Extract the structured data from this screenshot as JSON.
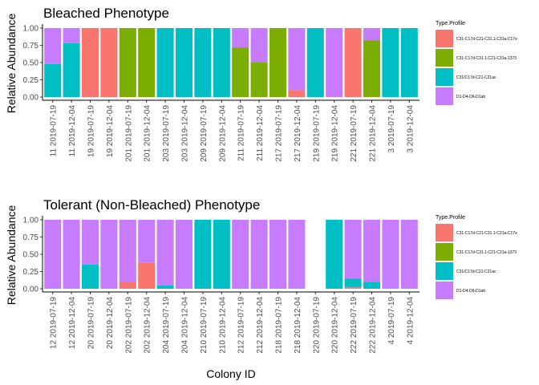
{
  "colors": {
    "C31-C17d-C21-C31.1-C31a-C17e": "#F8766D",
    "C31-C17d-C31.1-C21-C31a-1373": "#7CAE00",
    "C31/C17d-C21-C21ac": "#00BFC4",
    "D1-D4-D6-D1ab": "#C77CFF"
  },
  "chart_data": [
    {
      "type": "bar",
      "stacked": true,
      "title": "Bleached Phenotype",
      "xlabel": "",
      "ylabel": "Relative Abundance",
      "ylim": [
        0,
        1
      ],
      "yticks": [
        "0.00",
        "0.25",
        "0.50",
        "0.75",
        "1.00"
      ],
      "categories": [
        "11 2019-07-19",
        "11 2019-12-04",
        "19 2019-07-19",
        "19 2019-12-04",
        "201 2019-07-19",
        "201 2019-12-04",
        "203 2019-07-19",
        "203 2019-12-04",
        "209 2019-07-19",
        "209 2019-12-04",
        "211 2019-07-19",
        "211 2019-12-04",
        "217 2019-07-19",
        "217 2019-12-04",
        "219 2019-07-19",
        "219 2019-12-04",
        "221 2019-07-19",
        "221 2019-12-04",
        "3 2019-07-19",
        "3 2019-12-04"
      ],
      "legend_title": "Type.Profile",
      "legend_position": "right",
      "series": [
        {
          "name": "C31-C17d-C21-C31.1-C31a-C17e",
          "values": [
            0,
            0,
            1,
            1,
            0,
            0,
            0,
            0,
            0,
            0,
            0,
            0,
            0,
            0.1,
            0,
            0,
            1,
            0,
            0,
            0
          ]
        },
        {
          "name": "C31-C17d-C31.1-C21-C31a-1373",
          "values": [
            0,
            0,
            0,
            0,
            1,
            1,
            0,
            0,
            0,
            0,
            0.72,
            0.5,
            1,
            0,
            0,
            0,
            0,
            0.82,
            0,
            0
          ]
        },
        {
          "name": "C31/C17d-C21-C21ac",
          "values": [
            0.48,
            0.78,
            0,
            0,
            0,
            0,
            1,
            1,
            1,
            1,
            0,
            0,
            0,
            0,
            1,
            0,
            0,
            0,
            1,
            1
          ]
        },
        {
          "name": "D1-D4-D6-D1ab",
          "values": [
            0.52,
            0.22,
            0,
            0,
            0,
            0,
            0,
            0,
            0,
            0,
            0.28,
            0.5,
            0,
            0.9,
            0,
            1,
            0,
            0.18,
            0,
            0
          ]
        }
      ]
    },
    {
      "type": "bar",
      "stacked": true,
      "title": "Tolerant (Non-Bleached) Phenotype",
      "xlabel": "Colony ID",
      "ylabel": "Relative Abundance",
      "ylim": [
        0,
        1
      ],
      "yticks": [
        "0.00",
        "0.25",
        "0.50",
        "0.75",
        "1.00"
      ],
      "categories": [
        "12 2019-07-19",
        "12 2019-12-04",
        "20 2019-07-19",
        "20 2019-12-04",
        "202 2019-07-19",
        "202 2019-12-04",
        "204 2019-07-19",
        "204 2019-12-04",
        "210 2019-07-19",
        "210 2019-12-04",
        "212 2019-07-19",
        "212 2019-12-04",
        "218 2019-07-19",
        "218 2019-12-04",
        "220 2019-07-19",
        "220 2019-12-04",
        "222 2019-07-19",
        "222 2019-12-04",
        "4 2019-07-19",
        "4 2019-12-04"
      ],
      "legend_title": "Type.Profile",
      "legend_position": "right",
      "series": [
        {
          "name": "C31-C17d-C21-C31.1-C31a-C17e",
          "values": [
            0,
            0,
            0,
            0,
            0.1,
            0.38,
            0,
            0,
            0,
            0,
            0,
            0,
            0,
            0,
            0,
            0,
            0.02,
            0,
            0,
            0
          ]
        },
        {
          "name": "C31-C17d-C31.1-C21-C31a-1373",
          "values": [
            0,
            0,
            0,
            0,
            0,
            0,
            0,
            0,
            0,
            0,
            0,
            0,
            0,
            0,
            0,
            0,
            0,
            0,
            0,
            0
          ]
        },
        {
          "name": "C31/C17d-C21-C21ac",
          "values": [
            0,
            0,
            0.35,
            0,
            0,
            0,
            0.05,
            0,
            1,
            1,
            0,
            0,
            0,
            0,
            0,
            1,
            0.13,
            0.1,
            0,
            0
          ]
        },
        {
          "name": "D1-D4-D6-D1ab",
          "values": [
            1,
            1,
            0.65,
            1,
            0.9,
            0.62,
            0.95,
            1,
            0,
            0,
            1,
            1,
            1,
            1,
            0,
            0,
            0.85,
            0.9,
            1,
            1
          ]
        }
      ]
    }
  ]
}
